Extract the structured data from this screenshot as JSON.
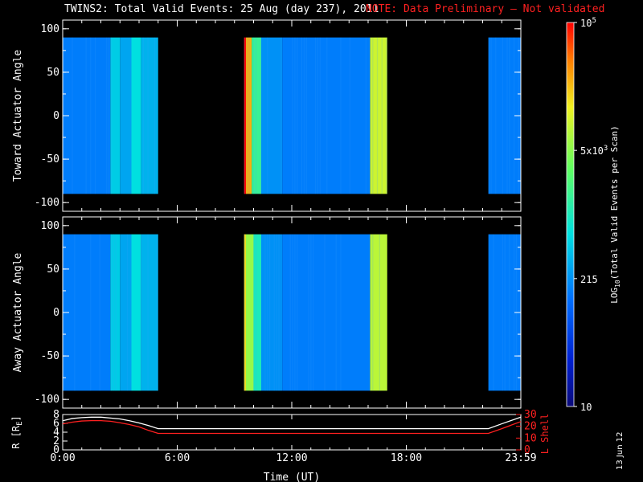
{
  "title": "TWINS2: Total Valid Events: 25 Aug (day 237), 2011",
  "note": "NOTE: Data Preliminary — Not validated",
  "date_stamp": "13 Jun 12",
  "colors": {
    "background": "#000000",
    "axes": "#ffffff",
    "note": "#ff2020",
    "lshell": "#ff2020",
    "radius": "#ffffff"
  },
  "chart_data": [
    {
      "type": "heatmap",
      "ylabel": "Toward Actuator Angle",
      "ylim": [
        -110,
        110
      ],
      "yticks": [
        -100,
        -50,
        0,
        50,
        100
      ],
      "y_data_range": [
        -90,
        90
      ],
      "xlim": [
        0,
        24
      ],
      "coverage_hours": [
        [
          0,
          5
        ],
        [
          9.5,
          17
        ],
        [
          22.3,
          24
        ]
      ],
      "bands": [
        {
          "x": [
            0,
            2.5
          ],
          "level": 0.3
        },
        {
          "x": [
            2.5,
            3.0
          ],
          "level": 0.42
        },
        {
          "x": [
            3.0,
            3.6
          ],
          "level": 0.36
        },
        {
          "x": [
            3.6,
            4.1
          ],
          "level": 0.45
        },
        {
          "x": [
            4.1,
            5.0
          ],
          "level": 0.38
        },
        {
          "x": [
            9.5,
            9.6
          ],
          "level": 1.0
        },
        {
          "x": [
            9.6,
            9.9
          ],
          "level": 0.85
        },
        {
          "x": [
            9.9,
            10.4
          ],
          "level": 0.55
        },
        {
          "x": [
            10.4,
            11.5
          ],
          "level": 0.33
        },
        {
          "x": [
            11.5,
            16.1
          ],
          "level": 0.3
        },
        {
          "x": [
            16.1,
            17.0
          ],
          "level": 0.74
        },
        {
          "x": [
            22.3,
            24
          ],
          "level": 0.3
        }
      ]
    },
    {
      "type": "heatmap",
      "ylabel": "Away Actuator Angle",
      "ylim": [
        -110,
        110
      ],
      "yticks": [
        -100,
        -50,
        0,
        50,
        100
      ],
      "y_data_range": [
        -90,
        90
      ],
      "xlim": [
        0,
        24
      ],
      "coverage_hours": [
        [
          0,
          5
        ],
        [
          9.5,
          17
        ],
        [
          22.3,
          24
        ]
      ],
      "bands": [
        {
          "x": [
            0,
            2.5
          ],
          "level": 0.3
        },
        {
          "x": [
            2.5,
            3.0
          ],
          "level": 0.42
        },
        {
          "x": [
            3.0,
            3.6
          ],
          "level": 0.36
        },
        {
          "x": [
            3.6,
            4.1
          ],
          "level": 0.45
        },
        {
          "x": [
            4.1,
            5.0
          ],
          "level": 0.38
        },
        {
          "x": [
            9.5,
            9.6
          ],
          "level": 0.8
        },
        {
          "x": [
            9.6,
            10.0
          ],
          "level": 0.68
        },
        {
          "x": [
            10.0,
            10.4
          ],
          "level": 0.5
        },
        {
          "x": [
            10.4,
            11.5
          ],
          "level": 0.33
        },
        {
          "x": [
            11.5,
            16.1
          ],
          "level": 0.3
        },
        {
          "x": [
            16.1,
            17.0
          ],
          "level": 0.72
        },
        {
          "x": [
            22.3,
            24
          ],
          "level": 0.3
        }
      ]
    },
    {
      "type": "line",
      "ylabel_left": "R [R",
      "ylabel_left_sub": "E",
      "ylabel_left_close": "]",
      "ylabel_right": "L Shell",
      "xlabel": "Time (UT)",
      "xlim": [
        0,
        24
      ],
      "xticks": [
        "0:00",
        "6:00",
        "12:00",
        "18:00",
        "23:59"
      ],
      "xtick_values": [
        0,
        6,
        12,
        18,
        24
      ],
      "left_ylim": [
        0,
        8
      ],
      "left_yticks": [
        0,
        2,
        4,
        6,
        8
      ],
      "right_ylim": [
        0,
        30
      ],
      "right_yticks": [
        0,
        10,
        20,
        30
      ],
      "series": [
        {
          "axis": "left",
          "x": [
            0,
            0.5,
            1,
            1.5,
            2,
            2.5,
            3,
            3.5,
            4,
            4.5,
            5,
            8,
            12,
            16,
            20,
            22.3,
            23,
            24
          ],
          "values": [
            6.6,
            7.1,
            7.3,
            7.4,
            7.4,
            7.2,
            7.0,
            6.6,
            6.1,
            5.5,
            4.8,
            4.8,
            4.8,
            4.8,
            4.8,
            4.8,
            5.9,
            7.4
          ]
        },
        {
          "axis": "right",
          "x": [
            0,
            0.5,
            1,
            1.5,
            2,
            2.5,
            3,
            3.5,
            4,
            4.5,
            5,
            8,
            12,
            16,
            20,
            22.3,
            23,
            24
          ],
          "values": [
            22,
            23.5,
            24.5,
            24.8,
            24.8,
            24.3,
            23,
            21.5,
            19.5,
            16.5,
            14,
            14,
            14,
            14,
            14,
            14,
            18,
            24
          ]
        }
      ]
    },
    {
      "type": "colorbar",
      "label_main": "LOG",
      "label_sub": "10",
      "label_rest": "(Total Valid Events per Scan)",
      "ticks": [
        {
          "label": "10",
          "pos": 0
        },
        {
          "label": "215",
          "pos": 0.333
        },
        {
          "label": "5x10",
          "sup": "3",
          "pos": 0.667
        },
        {
          "label": "10",
          "sup": "5",
          "pos": 1
        }
      ]
    }
  ]
}
